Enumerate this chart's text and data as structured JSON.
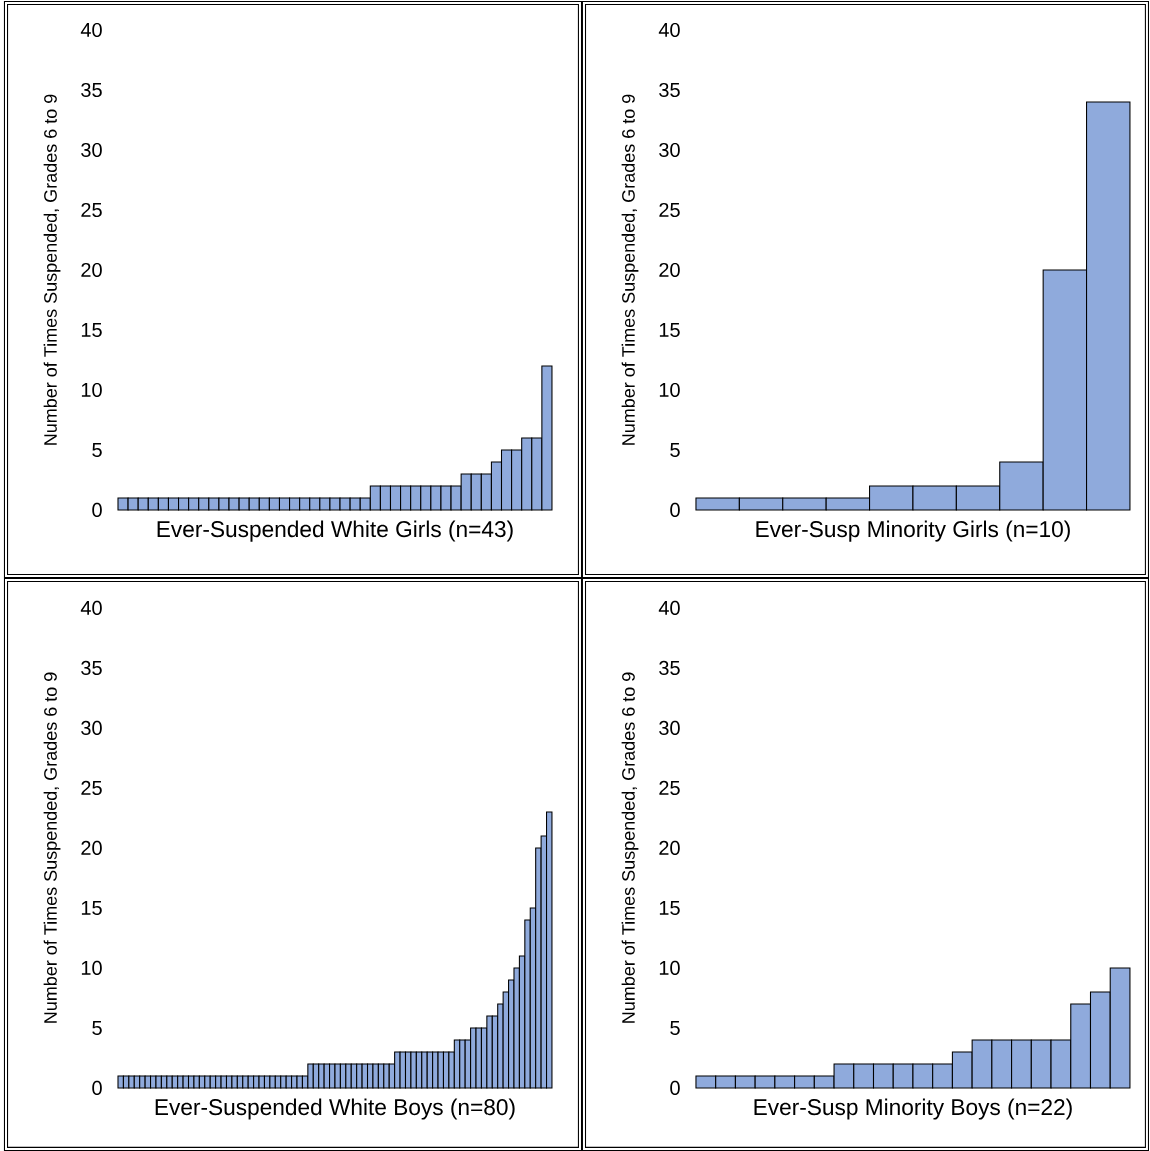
{
  "chart_data": [
    {
      "type": "bar",
      "xlabel": "Ever-Suspended White Girls (n=43)",
      "ylabel": "Number of Times Suspended, Grades 6 to 9",
      "color": "#8faadc",
      "ylim": [
        0,
        40
      ],
      "yticks": [
        0,
        5,
        10,
        15,
        20,
        25,
        30,
        35,
        40
      ],
      "categories": [
        null,
        null,
        null,
        null,
        null,
        null,
        null,
        null,
        null,
        null,
        null,
        null,
        null,
        null,
        null,
        null,
        null,
        null,
        null,
        null,
        null,
        null,
        null,
        null,
        null,
        null,
        null,
        null,
        null,
        null,
        null,
        null,
        null,
        null,
        null,
        null,
        null,
        null,
        null,
        null,
        null,
        null,
        null
      ],
      "values": [
        1,
        1,
        1,
        1,
        1,
        1,
        1,
        1,
        1,
        1,
        1,
        1,
        1,
        1,
        1,
        1,
        1,
        1,
        1,
        1,
        1,
        1,
        1,
        1,
        1,
        2,
        2,
        2,
        2,
        2,
        2,
        2,
        2,
        2,
        3,
        3,
        3,
        4,
        5,
        5,
        6,
        6,
        12
      ]
    },
    {
      "type": "bar",
      "xlabel": "Ever-Susp Minority Girls (n=10)",
      "ylabel": "Number of Times Suspended, Grades 6 to 9",
      "color": "#8faadc",
      "ylim": [
        0,
        40
      ],
      "yticks": [
        0,
        5,
        10,
        15,
        20,
        25,
        30,
        35,
        40
      ],
      "categories": [
        null,
        null,
        null,
        null,
        null,
        null,
        null,
        null,
        null,
        null
      ],
      "values": [
        1,
        1,
        1,
        1,
        2,
        2,
        2,
        4,
        20,
        34
      ]
    },
    {
      "type": "bar",
      "xlabel": "Ever-Suspended White Boys (n=80)",
      "ylabel": "Number of Times Suspended, Grades 6 to 9",
      "color": "#8faadc",
      "ylim": [
        0,
        40
      ],
      "yticks": [
        0,
        5,
        10,
        15,
        20,
        25,
        30,
        35,
        40
      ],
      "categories": [
        null,
        null,
        null,
        null,
        null,
        null,
        null,
        null,
        null,
        null,
        null,
        null,
        null,
        null,
        null,
        null,
        null,
        null,
        null,
        null,
        null,
        null,
        null,
        null,
        null,
        null,
        null,
        null,
        null,
        null,
        null,
        null,
        null,
        null,
        null,
        null,
        null,
        null,
        null,
        null,
        null,
        null,
        null,
        null,
        null,
        null,
        null,
        null,
        null,
        null,
        null,
        null,
        null,
        null,
        null,
        null,
        null,
        null,
        null,
        null,
        null,
        null,
        null,
        null,
        null,
        null,
        null,
        null,
        null,
        null,
        null,
        null,
        null,
        null,
        null,
        null,
        null,
        null,
        null,
        null
      ],
      "values": [
        1,
        1,
        1,
        1,
        1,
        1,
        1,
        1,
        1,
        1,
        1,
        1,
        1,
        1,
        1,
        1,
        1,
        1,
        1,
        1,
        1,
        1,
        1,
        1,
        1,
        1,
        1,
        1,
        1,
        1,
        1,
        1,
        1,
        1,
        1,
        2,
        2,
        2,
        2,
        2,
        2,
        2,
        2,
        2,
        2,
        2,
        2,
        2,
        2,
        2,
        2,
        3,
        3,
        3,
        3,
        3,
        3,
        3,
        3,
        3,
        3,
        3,
        4,
        4,
        4,
        5,
        5,
        5,
        6,
        6,
        7,
        8,
        9,
        10,
        11,
        14,
        15,
        20,
        21,
        23
      ]
    },
    {
      "type": "bar",
      "xlabel": "Ever-Susp Minority Boys (n=22)",
      "ylabel": "Number of Times Suspended, Grades 6 to 9",
      "color": "#8faadc",
      "ylim": [
        0,
        40
      ],
      "yticks": [
        0,
        5,
        10,
        15,
        20,
        25,
        30,
        35,
        40
      ],
      "categories": [
        null,
        null,
        null,
        null,
        null,
        null,
        null,
        null,
        null,
        null,
        null,
        null,
        null,
        null,
        null,
        null,
        null,
        null,
        null,
        null,
        null,
        null
      ],
      "values": [
        1,
        1,
        1,
        1,
        1,
        1,
        1,
        2,
        2,
        2,
        2,
        2,
        2,
        3,
        4,
        4,
        4,
        4,
        4,
        7,
        8,
        10
      ]
    }
  ]
}
